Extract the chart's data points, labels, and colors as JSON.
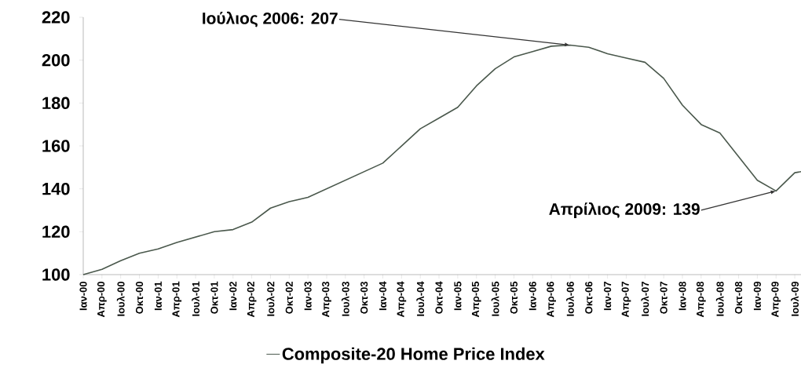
{
  "chart_data": {
    "type": "line",
    "x": [
      "2000-01",
      "2000-04",
      "2000-07",
      "2000-10",
      "2001-01",
      "2001-04",
      "2001-07",
      "2001-10",
      "2002-01",
      "2002-04",
      "2002-07",
      "2002-10",
      "2003-01",
      "2003-04",
      "2003-07",
      "2003-10",
      "2004-01",
      "2004-04",
      "2004-07",
      "2004-10",
      "2005-01",
      "2005-04",
      "2005-07",
      "2005-10",
      "2006-01",
      "2006-04",
      "2006-07",
      "2006-10",
      "2007-01",
      "2007-04",
      "2007-07",
      "2007-10",
      "2008-01",
      "2008-04",
      "2008-07",
      "2008-10",
      "2009-01",
      "2009-04",
      "2009-07",
      "2009-08"
    ],
    "series": [
      {
        "name": "Composite-20 Home Price Index",
        "color": "#4a584c",
        "values": [
          100,
          102.5,
          106.5,
          110,
          112,
          115,
          117.5,
          120,
          121,
          124.5,
          131,
          134,
          136,
          140,
          144,
          148,
          152,
          160,
          168,
          173,
          178,
          188,
          196,
          201.5,
          204,
          206.5,
          207,
          206,
          203,
          201,
          199,
          191.5,
          179,
          170,
          166,
          155,
          144,
          139,
          147.5,
          148
        ]
      }
    ],
    "xlim": [
      "2000-01",
      "2009-08"
    ],
    "xticks": [
      {
        "value": "2000-01",
        "label": "Ιαν-00"
      },
      {
        "value": "2000-04",
        "label": "Απρ-00"
      },
      {
        "value": "2000-07",
        "label": "Ιουλ-00"
      },
      {
        "value": "2000-10",
        "label": "Οκτ-00"
      },
      {
        "value": "2001-01",
        "label": "Ιαν-01"
      },
      {
        "value": "2001-04",
        "label": "Απρ-01"
      },
      {
        "value": "2001-07",
        "label": "Ιουλ-01"
      },
      {
        "value": "2001-10",
        "label": "Οκτ-01"
      },
      {
        "value": "2002-01",
        "label": "Ιαν-02"
      },
      {
        "value": "2002-04",
        "label": "Απρ-02"
      },
      {
        "value": "2002-07",
        "label": "Ιουλ-02"
      },
      {
        "value": "2002-10",
        "label": "Οκτ-02"
      },
      {
        "value": "2003-01",
        "label": "Ιαν-03"
      },
      {
        "value": "2003-04",
        "label": "Απρ-03"
      },
      {
        "value": "2003-07",
        "label": "Ιουλ-03"
      },
      {
        "value": "2003-10",
        "label": "Οκτ-03"
      },
      {
        "value": "2004-01",
        "label": "Ιαν-04"
      },
      {
        "value": "2004-04",
        "label": "Απρ-04"
      },
      {
        "value": "2004-07",
        "label": "Ιουλ-04"
      },
      {
        "value": "2004-10",
        "label": "Οκτ-04"
      },
      {
        "value": "2005-01",
        "label": "Ιαν-05"
      },
      {
        "value": "2005-04",
        "label": "Απρ-05"
      },
      {
        "value": "2005-07",
        "label": "Ιουλ-05"
      },
      {
        "value": "2005-10",
        "label": "Οκτ-05"
      },
      {
        "value": "2006-01",
        "label": "Ιαν-06"
      },
      {
        "value": "2006-04",
        "label": "Απρ-06"
      },
      {
        "value": "2006-07",
        "label": "Ιουλ-06"
      },
      {
        "value": "2006-10",
        "label": "Οκτ-06"
      },
      {
        "value": "2007-01",
        "label": "Ιαν-07"
      },
      {
        "value": "2007-04",
        "label": "Απρ-07"
      },
      {
        "value": "2007-07",
        "label": "Ιουλ-07"
      },
      {
        "value": "2007-10",
        "label": "Οκτ-07"
      },
      {
        "value": "2008-01",
        "label": "Ιαν-08"
      },
      {
        "value": "2008-04",
        "label": "Απρ-08"
      },
      {
        "value": "2008-07",
        "label": "Ιουλ-08"
      },
      {
        "value": "2008-10",
        "label": "Οκτ-08"
      },
      {
        "value": "2009-01",
        "label": "Ιαν-09"
      },
      {
        "value": "2009-04",
        "label": "Απρ-09"
      },
      {
        "value": "2009-07",
        "label": "Ιουλ-09"
      }
    ],
    "ylim": [
      100,
      220
    ],
    "yticks": [
      100,
      120,
      140,
      160,
      180,
      200,
      220
    ],
    "annotations": [
      {
        "text": "Ιούλιος 2006: 207",
        "x": "2006-07",
        "y": 207
      },
      {
        "text": "Απρίλιος 2009: 139",
        "x": "2009-04",
        "y": 139
      }
    ],
    "legend": "bottom",
    "grid": false,
    "marker": "none",
    "line_style": "solid"
  }
}
